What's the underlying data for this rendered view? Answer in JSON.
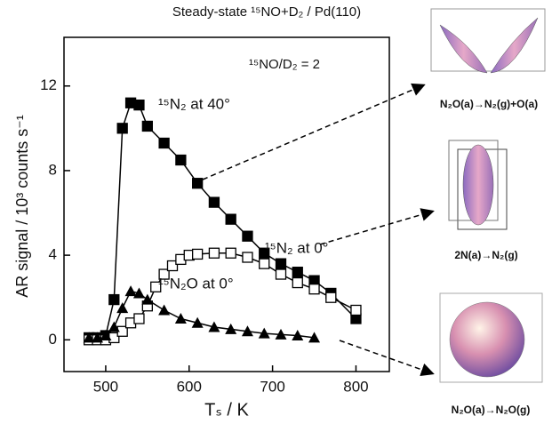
{
  "chart_data": {
    "type": "line",
    "title": "Steady-state ¹⁵NO+D₂ / Pd(110)",
    "x_label": "Tₛ / K",
    "y_label": "AR signal / 10³ counts s⁻¹",
    "annotation": "¹⁵NO/D₂ = 2",
    "xlim": [
      450,
      840
    ],
    "xticks": [
      500,
      600,
      700,
      800
    ],
    "ylim": [
      -1.5,
      14.3
    ],
    "yticks": [
      0,
      4,
      8,
      12
    ],
    "series": [
      {
        "name": "¹⁵N₂ at 40°",
        "color": "#000000",
        "marker": "square-filled",
        "x": [
          480,
          490,
          500,
          510,
          520,
          530,
          540,
          550,
          570,
          590,
          610,
          630,
          650,
          670,
          690,
          710,
          730,
          750,
          770,
          800
        ],
        "values": [
          0.1,
          0.1,
          0.2,
          1.9,
          10.0,
          11.2,
          11.1,
          10.1,
          9.3,
          8.5,
          7.4,
          6.5,
          5.7,
          4.9,
          4.1,
          3.6,
          3.2,
          2.8,
          2.2,
          1.0
        ]
      },
      {
        "name": "¹⁵N₂ at 0°",
        "color": "#000000",
        "marker": "square-open",
        "x": [
          480,
          490,
          500,
          510,
          520,
          530,
          540,
          550,
          560,
          570,
          580,
          590,
          600,
          610,
          630,
          650,
          670,
          690,
          710,
          730,
          750,
          770,
          800
        ],
        "values": [
          0,
          0,
          0,
          0.1,
          0.4,
          0.8,
          1.0,
          1.6,
          2.5,
          3.1,
          3.5,
          3.8,
          4.0,
          4.05,
          4.1,
          4.1,
          3.9,
          3.6,
          3.1,
          2.7,
          2.4,
          2.0,
          1.4
        ]
      },
      {
        "name": "¹⁵N₂O at 0°",
        "color": "#000000",
        "marker": "triangle-filled",
        "x": [
          480,
          490,
          500,
          510,
          520,
          530,
          540,
          550,
          570,
          590,
          610,
          630,
          650,
          670,
          690,
          710,
          730,
          750
        ],
        "values": [
          0.1,
          0.1,
          0.2,
          0.6,
          1.5,
          2.3,
          2.2,
          1.9,
          1.4,
          1.0,
          0.8,
          0.6,
          0.5,
          0.4,
          0.3,
          0.25,
          0.2,
          0.1
        ]
      }
    ],
    "captions": [
      "N₂O(a)→N₂(g)+O(a)",
      "2N(a)→N₂(g)",
      "N₂O(a)→N₂O(g)"
    ]
  }
}
